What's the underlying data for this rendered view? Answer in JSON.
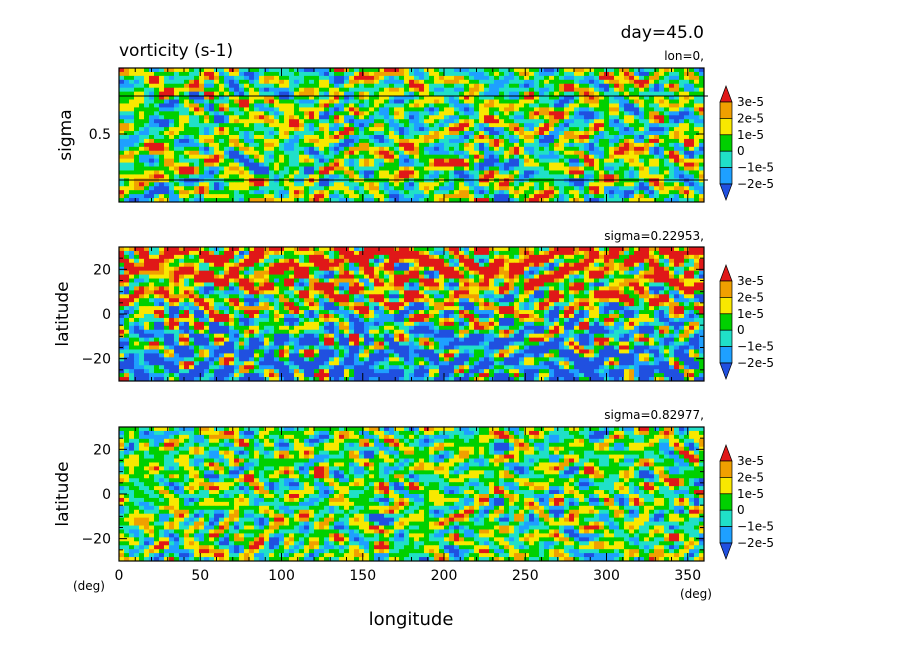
{
  "header": {
    "day_label": "day=45.0",
    "title": "vorticity (s-1)"
  },
  "colors": {
    "levels": [
      "#2050e0",
      "#1ea0ff",
      "#20e0c8",
      "#00d000",
      "#f8e800",
      "#f0a000",
      "#e01818"
    ],
    "background": "#ffffff"
  },
  "chart_data": [
    {
      "type": "heatmap",
      "subtitle": "lon=0,",
      "ylabel": "sigma",
      "xlim": [
        0,
        360
      ],
      "ylim": [
        0,
        1
      ],
      "y_ticks": [
        0.5
      ],
      "y_tick_labels": [
        "0.5"
      ],
      "reference_lines_sigma": [
        0.229,
        0.83
      ],
      "colorbar_labels": [
        "3e-5",
        "2e-5",
        "1e-5",
        "0",
        "−1e-5",
        "−2e-5"
      ],
      "colorbar_min": -2.5e-05,
      "colorbar_max": 3.5e-05
    },
    {
      "type": "heatmap",
      "subtitle": "sigma=0.22953,",
      "ylabel": "latitude",
      "xlim": [
        0,
        360
      ],
      "ylim": [
        -30,
        30
      ],
      "y_ticks": [
        -20,
        0,
        20
      ],
      "y_tick_labels": [
        "−20",
        "0",
        "20"
      ],
      "colorbar_labels": [
        "3e-5",
        "2e-5",
        "1e-5",
        "0",
        "−1e-5",
        "−2e-5"
      ],
      "colorbar_min": -2.5e-05,
      "colorbar_max": 3.5e-05
    },
    {
      "type": "heatmap",
      "subtitle": "sigma=0.82977,",
      "ylabel": "latitude",
      "xlabel": "longitude",
      "xlim": [
        0,
        360
      ],
      "ylim": [
        -30,
        30
      ],
      "x_ticks": [
        0,
        50,
        100,
        150,
        200,
        250,
        300,
        350
      ],
      "x_tick_labels": [
        "0",
        "50",
        "100",
        "150",
        "200",
        "250",
        "300",
        "350"
      ],
      "x_unit_left": "(deg)",
      "x_unit_right": "(deg)",
      "y_ticks": [
        -20,
        0,
        20
      ],
      "y_tick_labels": [
        "−20",
        "0",
        "20"
      ],
      "colorbar_labels": [
        "3e-5",
        "2e-5",
        "1e-5",
        "0",
        "−1e-5",
        "−2e-5"
      ],
      "colorbar_min": -2.5e-05,
      "colorbar_max": 3.5e-05
    }
  ]
}
